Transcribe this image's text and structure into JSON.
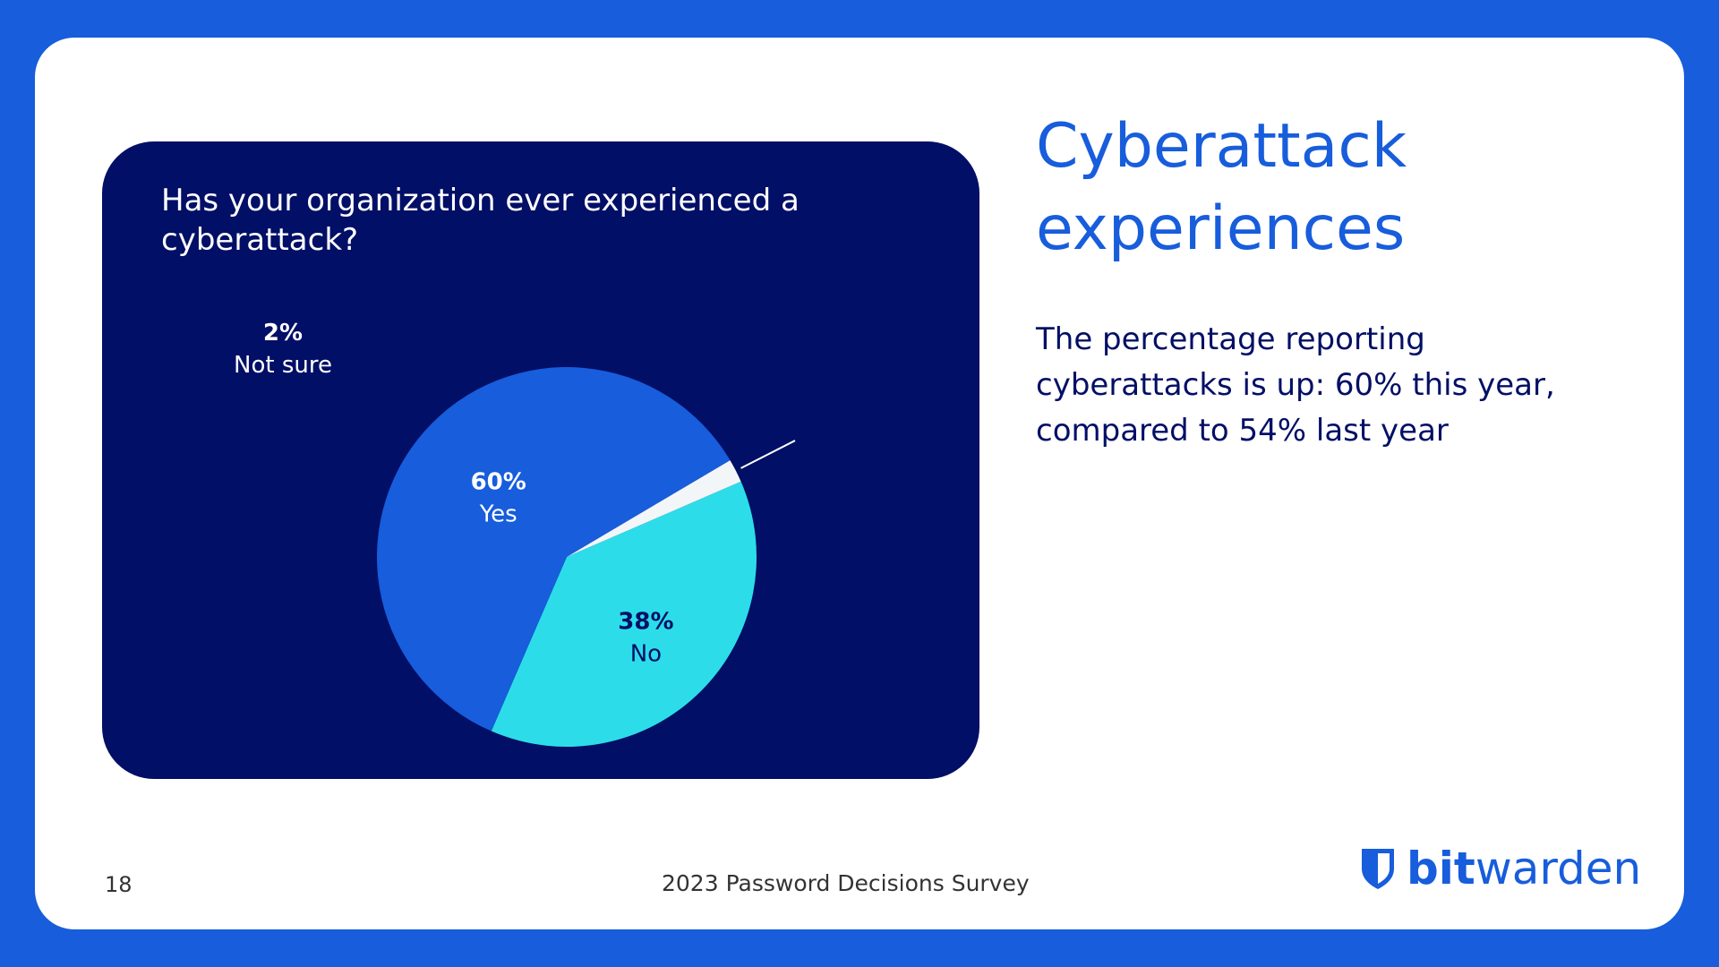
{
  "slide": {
    "title_line1": "Cyberattack",
    "title_line2": "experiences",
    "body": "The percentage reporting cyberattacks is up: 60% this year, compared to 54% last year",
    "page_number": "18",
    "footer_title": "2023 Password Decisions Survey",
    "brand_bold": "bit",
    "brand_light": "warden",
    "brand_icon": "shield-icon"
  },
  "chart_data": {
    "type": "pie",
    "title": "Has your organization ever experienced a cyberattack?",
    "slices": [
      {
        "label": "No",
        "value": 38,
        "value_label": "38%",
        "color": "#2cdde9",
        "text_color": "#020f66"
      },
      {
        "label": "Yes",
        "value": 60,
        "value_label": "60%",
        "color": "#175ddc",
        "text_color": "#ffffff"
      },
      {
        "label": "Not sure",
        "value": 2,
        "value_label": "2%",
        "color": "#f3f6f9",
        "text_color": "#ffffff"
      }
    ]
  },
  "colors": {
    "background": "#175ddc",
    "card": "#020f66",
    "accent": "#175ddc",
    "text_dark": "#020f66"
  }
}
